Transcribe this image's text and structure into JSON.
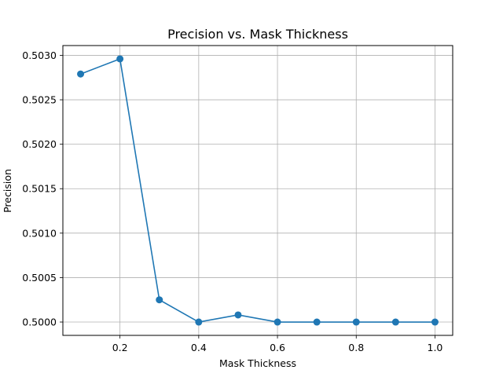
{
  "chart_data": {
    "type": "line",
    "title": "Precision vs. Mask Thickness",
    "xlabel": "Mask Thickness",
    "ylabel": "Precision",
    "x": [
      0.1,
      0.2,
      0.3,
      0.4,
      0.5,
      0.6,
      0.7,
      0.8,
      0.9,
      1.0
    ],
    "y": [
      0.50279,
      0.50296,
      0.50025,
      0.5,
      0.50008,
      0.5,
      0.5,
      0.5,
      0.5,
      0.5
    ],
    "xlim": [
      0.055,
      1.045
    ],
    "ylim": [
      0.49985,
      0.50311
    ],
    "xticks": [
      0.2,
      0.4,
      0.6,
      0.8,
      1.0
    ],
    "xtick_labels": [
      "0.2",
      "0.4",
      "0.6",
      "0.8",
      "1.0"
    ],
    "yticks": [
      0.5,
      0.5005,
      0.501,
      0.5015,
      0.502,
      0.5025,
      0.503
    ],
    "ytick_labels": [
      "0.5000",
      "0.5005",
      "0.5010",
      "0.5015",
      "0.5020",
      "0.5025",
      "0.5030"
    ],
    "grid": true,
    "line_color": "#1f77b4",
    "marker": "circle"
  }
}
